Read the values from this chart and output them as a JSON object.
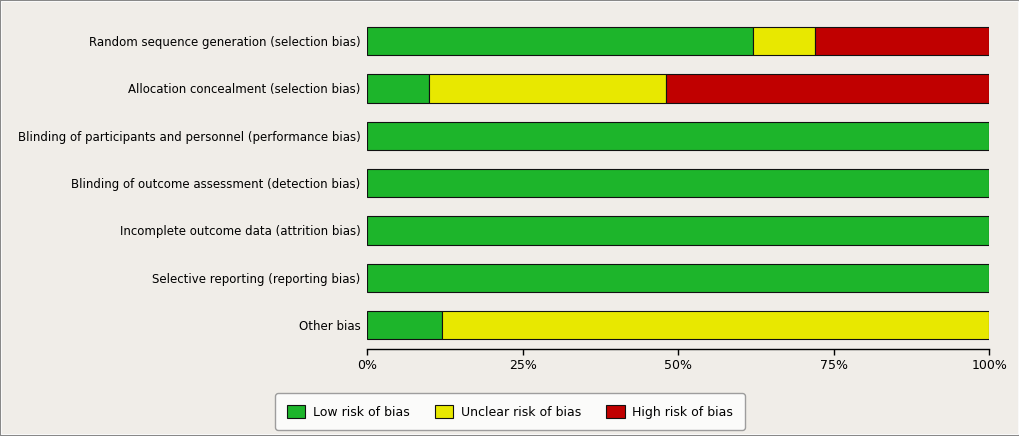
{
  "categories": [
    "Random sequence generation (selection bias)",
    "Allocation concealment (selection bias)",
    "Blinding of participants and personnel (performance bias)",
    "Blinding of outcome assessment (detection bias)",
    "Incomplete outcome data (attrition bias)",
    "Selective reporting (reporting bias)",
    "Other bias"
  ],
  "low_risk": [
    62,
    10,
    100,
    100,
    100,
    100,
    12
  ],
  "unclear_risk": [
    10,
    38,
    0,
    0,
    0,
    0,
    88
  ],
  "high_risk": [
    28,
    52,
    0,
    0,
    0,
    0,
    0
  ],
  "color_low": "#1db52b",
  "color_unclear": "#e8e800",
  "color_high": "#c00000",
  "color_border": "#111111",
  "background_color": "#f0ede8",
  "legend_bg": "#ffffff",
  "legend_border": "#888888",
  "bar_height": 0.6,
  "xlim": [
    0,
    100
  ],
  "xticks": [
    0,
    25,
    50,
    75,
    100
  ],
  "xtick_labels": [
    "0%",
    "25%",
    "50%",
    "75%",
    "100%"
  ],
  "legend_labels": [
    "Low risk of bias",
    "Unclear risk of bias",
    "High risk of bias"
  ],
  "figsize": [
    10.2,
    4.36
  ],
  "dpi": 100
}
